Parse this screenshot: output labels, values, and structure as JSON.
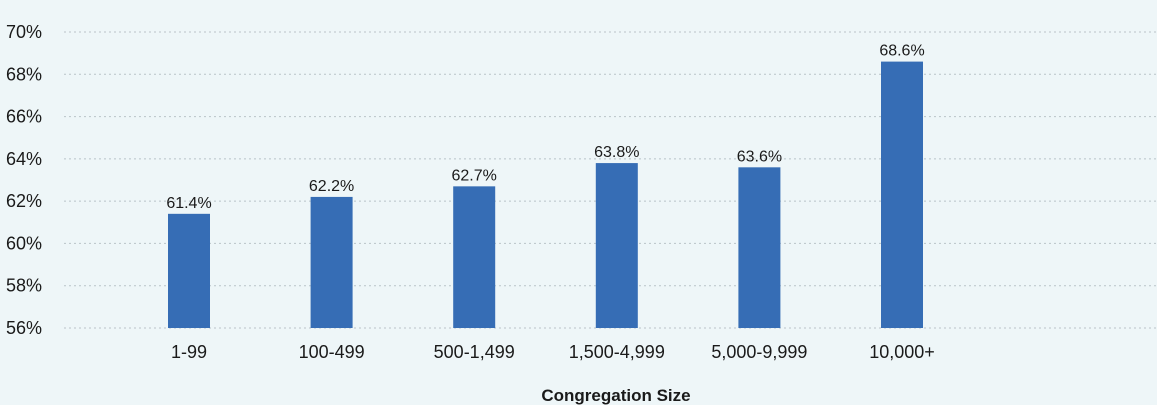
{
  "chart_data": {
    "type": "bar",
    "title": "",
    "xlabel": "Congregation Size",
    "ylabel": "",
    "categories": [
      "1-99",
      "100-499",
      "500-1,499",
      "1,500-4,999",
      "5,000-9,999",
      "10,000+"
    ],
    "values": [
      61.4,
      62.2,
      62.7,
      63.8,
      63.6,
      68.6
    ],
    "data_labels": [
      "61.4%",
      "62.2%",
      "62.7%",
      "63.8%",
      "63.6%",
      "68.6%"
    ],
    "ylim": [
      56,
      70
    ],
    "yticks": [
      56,
      58,
      60,
      62,
      64,
      66,
      68,
      70
    ],
    "ytick_labels": [
      "56%",
      "58%",
      "60%",
      "62%",
      "64%",
      "66%",
      "68%",
      "70%"
    ],
    "grid": true,
    "bar_color": "#366db5",
    "background_color": "#eef6f8"
  }
}
